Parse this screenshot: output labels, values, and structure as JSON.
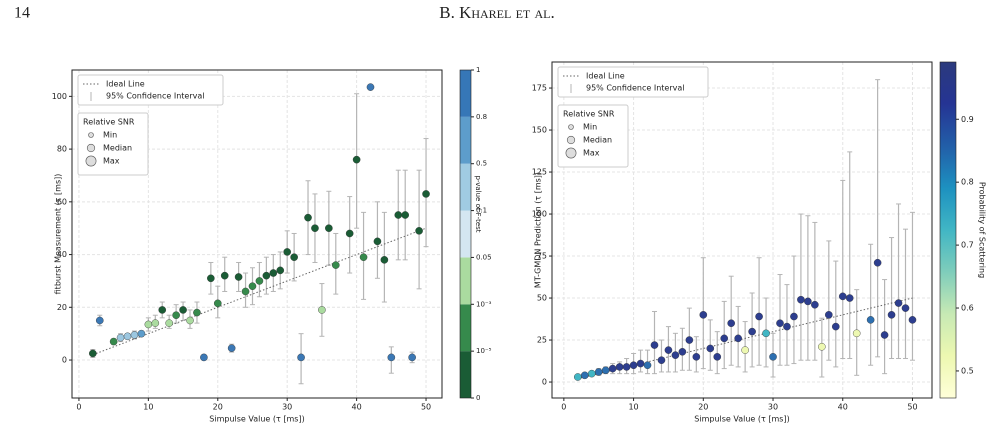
{
  "header": {
    "page_number": "14",
    "authors": "B. Kharel et al."
  },
  "chart_data": [
    {
      "type": "scatter",
      "xlabel": "Simpulse Value (τ [ms])",
      "ylabel": "fitburst Measurement (τ [ms])",
      "xlim": [
        -1,
        52.3
      ],
      "ylim": [
        -14.4,
        110
      ],
      "xticks": [
        0,
        10,
        20,
        30,
        40,
        50
      ],
      "yticks": [
        0,
        20,
        40,
        60,
        80,
        100
      ],
      "grid": true,
      "legend": {
        "ideal": "Ideal Line",
        "ci": "95% Confidence Interval",
        "size_title": "Relative SNR",
        "size_labels": [
          "Min",
          "Median",
          "Max"
        ]
      },
      "ideal_line": {
        "x": [
          2,
          50
        ],
        "y": [
          2,
          50
        ],
        "color": "#666666"
      },
      "x": [
        2,
        3,
        5,
        6,
        7,
        8,
        9,
        10,
        11,
        12,
        13,
        14,
        15,
        16,
        17,
        18,
        19,
        20,
        21,
        22,
        23,
        24,
        25,
        26,
        27,
        28,
        29,
        30,
        31,
        32,
        33,
        34,
        35,
        36,
        37,
        39,
        40,
        41,
        42,
        43,
        44,
        45,
        46,
        47,
        48,
        49,
        50
      ],
      "y": [
        2.5,
        15,
        7,
        8.5,
        9,
        9.5,
        10,
        13.5,
        14,
        19,
        14,
        17,
        19,
        15,
        18,
        1,
        31,
        21.5,
        32,
        4.5,
        31.5,
        26,
        28,
        30,
        32,
        33,
        34,
        41,
        39,
        1,
        54,
        50,
        19,
        50,
        36,
        48,
        76,
        39,
        103.5,
        45,
        38,
        1,
        55,
        55,
        1,
        49,
        63
      ],
      "lower": [
        1,
        13,
        6,
        7,
        8,
        8,
        9,
        11,
        12,
        16,
        12,
        14,
        15,
        12,
        14,
        0,
        25,
        16,
        26,
        3,
        26,
        20,
        21,
        24,
        25,
        26,
        27,
        33,
        30,
        -9,
        40,
        37,
        9,
        36,
        25,
        33,
        50,
        23,
        103,
        31,
        22,
        -5,
        38,
        38,
        -1,
        27,
        43
      ],
      "upper": [
        4,
        17,
        8,
        10,
        10,
        11,
        11,
        16,
        17,
        22,
        17,
        21,
        22,
        19,
        22,
        2,
        37,
        28,
        39,
        6,
        37,
        33,
        35,
        37,
        39,
        40,
        41,
        49,
        48,
        10,
        68,
        63,
        29,
        64,
        48,
        62,
        101,
        56,
        104,
        60,
        56,
        5,
        72,
        72,
        3,
        72,
        84
      ],
      "colors": [
        "#1a5c35",
        "#3b78b5",
        "#368a4c",
        "#9cc7e0",
        "#9cc7e0",
        "#9cc7e0",
        "#5d9dcb",
        "#aadb9f",
        "#aadb9f",
        "#1a5c35",
        "#aadb9f",
        "#368a4c",
        "#1a5c35",
        "#aadb9f",
        "#368a4c",
        "#3b78b5",
        "#1a5c35",
        "#368a4c",
        "#1a5c35",
        "#3b78b5",
        "#1a5c35",
        "#368a4c",
        "#368a4c",
        "#368a4c",
        "#1a5c35",
        "#1a5c35",
        "#1a5c35",
        "#1a5c35",
        "#1a5c35",
        "#3b78b5",
        "#1a5c35",
        "#1a5c35",
        "#aadb9f",
        "#1a5c35",
        "#368a4c",
        "#1a5c35",
        "#1a5c35",
        "#368a4c",
        "#3b78b5",
        "#1a5c35",
        "#1a5c35",
        "#3b78b5",
        "#1a5c35",
        "#1a5c35",
        "#3b78b5",
        "#1a5c35",
        "#1a5c35"
      ],
      "colorbar": {
        "label": "p-value of F-test",
        "ticks": [
          "0",
          "10⁻⁵",
          "10⁻³",
          "0.05",
          "0.1",
          "0.5",
          "0.8",
          "1"
        ],
        "colors": [
          "#1a5c35",
          "#368a4c",
          "#aadb9f",
          "#d4e6f1",
          "#a0cbe2",
          "#5d9dcb",
          "#3677b7"
        ]
      }
    },
    {
      "type": "scatter",
      "xlabel": "Simpulse Value (τ [ms])",
      "ylabel": "MT-GMDN Prediction (τ [ms])",
      "xlim": [
        -1.7,
        52.8
      ],
      "ylim": [
        -9.5,
        190.5
      ],
      "xticks": [
        0,
        10,
        20,
        30,
        40,
        50
      ],
      "yticks": [
        0,
        25,
        50,
        75,
        100,
        125,
        150,
        175
      ],
      "grid": true,
      "legend": {
        "ideal": "Ideal Line",
        "ci": "95% Confidence Interval",
        "size_title": "Relative SNR",
        "size_labels": [
          "Min",
          "Median",
          "Max"
        ]
      },
      "ideal_line": {
        "x": [
          2,
          50
        ],
        "y": [
          2,
          50
        ],
        "color": "#666666"
      },
      "x": [
        2,
        3,
        4,
        5,
        6,
        7,
        8,
        9,
        10,
        11,
        12,
        13,
        14,
        15,
        16,
        17,
        18,
        19,
        20,
        21,
        22,
        23,
        24,
        25,
        26,
        27,
        28,
        29,
        30,
        31,
        32,
        33,
        34,
        35,
        36,
        37,
        38,
        39,
        40,
        41,
        42,
        44,
        45,
        46,
        47,
        48,
        49,
        50
      ],
      "y": [
        3,
        4,
        5,
        6,
        7,
        8,
        9,
        9,
        10,
        11,
        10,
        22,
        13,
        19,
        16,
        18,
        25,
        15,
        40,
        20,
        15,
        26,
        35,
        26,
        19,
        30,
        39,
        29,
        15,
        35,
        33,
        39,
        49,
        48,
        46,
        21,
        40,
        33,
        51,
        50,
        29,
        37,
        71,
        28,
        40,
        47,
        44,
        37
      ],
      "lower": [
        2,
        3,
        4,
        4,
        5,
        5,
        5,
        5,
        5,
        6,
        5,
        5,
        6,
        6,
        6,
        7,
        7,
        6,
        8,
        7,
        5,
        8,
        10,
        9,
        6,
        9,
        10,
        9,
        3,
        10,
        10,
        11,
        13,
        13,
        13,
        3,
        13,
        9,
        14,
        14,
        4,
        10,
        15,
        5,
        14,
        14,
        14,
        13
      ],
      "upper": [
        4,
        5,
        6,
        8,
        9,
        11,
        12,
        14,
        17,
        19,
        19,
        42,
        25,
        33,
        29,
        32,
        44,
        27,
        74,
        37,
        30,
        48,
        63,
        45,
        36,
        53,
        74,
        50,
        29,
        64,
        58,
        75,
        100,
        99,
        95,
        38,
        84,
        72,
        120,
        137,
        55,
        82,
        180,
        61,
        86,
        106,
        91,
        101
      ],
      "colors": [
        "#41b6c4",
        "#2d6fb0",
        "#41b6c4",
        "#2d6fb0",
        "#2d6fb0",
        "#2d3e8f",
        "#2d3e8f",
        "#2d3e8f",
        "#2d3e8f",
        "#2d3e8f",
        "#2d6fb0",
        "#2d3e8f",
        "#2d3e8f",
        "#2d3e8f",
        "#2d3e8f",
        "#2d3e8f",
        "#2d3e8f",
        "#2d3e8f",
        "#2d3e8f",
        "#2d3e8f",
        "#2d3e8f",
        "#2d3e8f",
        "#2d3e8f",
        "#2d3e8f",
        "#edf8b1",
        "#2d3e8f",
        "#2d3e8f",
        "#41b6c4",
        "#2d6fb0",
        "#2d3e8f",
        "#2d3e8f",
        "#2d3e8f",
        "#2d3e8f",
        "#2d3e8f",
        "#2d3e8f",
        "#edf8b1",
        "#2d3e8f",
        "#2d3e8f",
        "#2d3e8f",
        "#2d3e8f",
        "#edf8b1",
        "#2d6fb0",
        "#2d3e8f",
        "#2d3e8f",
        "#2d3e8f",
        "#2d3e8f",
        "#2d3e8f",
        "#2d3e8f"
      ],
      "colorbar": {
        "label": "Probability of Scattering",
        "clim": [
          0.457,
          0.991
        ],
        "ticks": [
          0.5,
          0.6,
          0.7,
          0.8,
          0.9
        ],
        "colors": [
          "#ffffd9",
          "#edf8b1",
          "#c7e9b4",
          "#7fcdbb",
          "#41b6c4",
          "#1d91c0",
          "#225ea8",
          "#253494",
          "#2b3a7d"
        ]
      }
    }
  ]
}
